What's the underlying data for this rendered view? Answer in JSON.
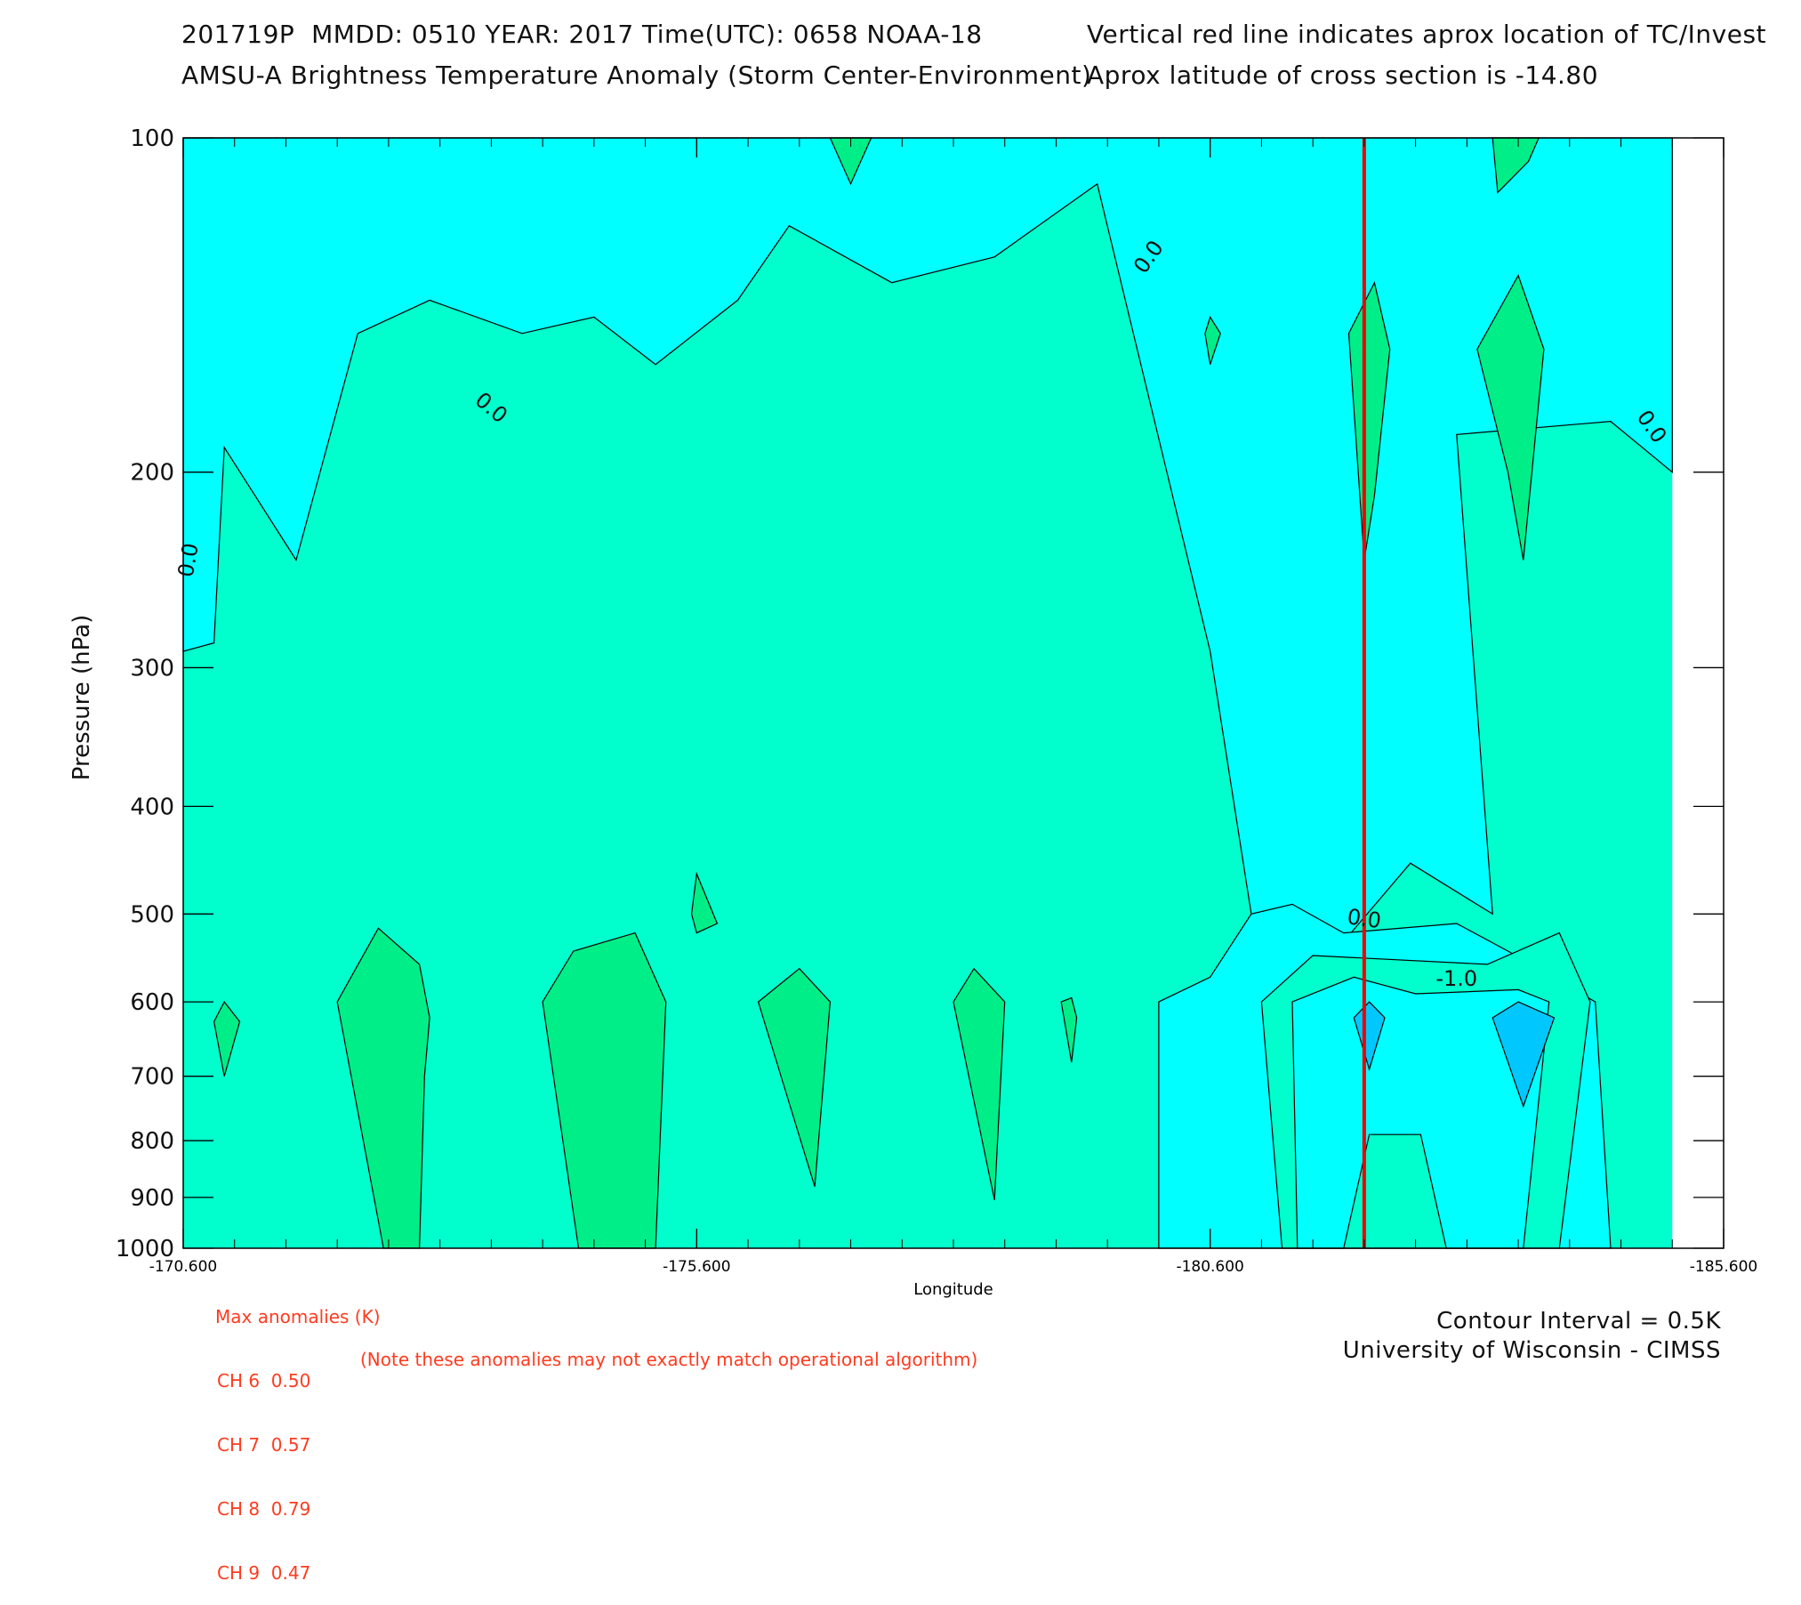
{
  "header": {
    "line1_left": "201719P  MMDD: 0510 YEAR: 2017 Time(UTC): 0658 NOAA-18",
    "line1_right": "Vertical red line indicates aprox location of TC/Invest",
    "line2_left": "AMSU-A Brightness Temperature Anomaly (Storm Center-Environment)",
    "line2_right": "Aprox latitude of cross section is -14.80"
  },
  "chart_data": {
    "type": "contour",
    "xlabel": "Longitude",
    "ylabel": "Pressure (hPa)",
    "x_ticks": [
      -170.6,
      -175.6,
      -180.6,
      -185.6
    ],
    "x_tick_labels": [
      "-170.600",
      "-175.600",
      "-180.600",
      "-185.600"
    ],
    "xlim": [
      -170.6,
      -185.6
    ],
    "y_scale": "log",
    "ylim": [
      1000,
      100
    ],
    "y_ticks": [
      100,
      200,
      300,
      400,
      500,
      600,
      700,
      800,
      900,
      1000
    ],
    "y_tick_labels": [
      "100",
      "200",
      "300",
      "400",
      "500",
      "600",
      "700",
      "800",
      "900",
      "1000"
    ],
    "contour_interval_K": 0.5,
    "contour_labels": [
      "0.0",
      "0.0",
      "0.0",
      "0.0",
      "0.0",
      "-1.0"
    ],
    "storm_longitude": -182.1,
    "colors": {
      "anomaly_neg_1_0": "#00c8ff",
      "anomaly_neg_0_5": "#00ffff",
      "anomaly_0_0": "#00ffcc",
      "anomaly_pos_0_5": "#00ee88",
      "storm_line": "#ee0000"
    },
    "regions": {
      "upper_negative": {
        "level": -0.5,
        "points": [
          [
            -170.6,
            100
          ],
          [
            -185.1,
            100
          ],
          [
            -185.1,
            200
          ],
          [
            -184.5,
            180
          ],
          [
            -183.0,
            185
          ],
          [
            -183.35,
            500
          ],
          [
            -182.55,
            450
          ],
          [
            -181.4,
            600
          ],
          [
            -181.0,
            500
          ],
          [
            -180.6,
            290
          ],
          [
            -179.5,
            110
          ],
          [
            -178.5,
            128
          ],
          [
            -177.5,
            135
          ],
          [
            -176.5,
            120
          ],
          [
            -176.0,
            140
          ],
          [
            -175.2,
            160
          ],
          [
            -174.6,
            145
          ],
          [
            -173.9,
            150
          ],
          [
            -173.0,
            140
          ],
          [
            -172.3,
            150
          ],
          [
            -171.7,
            240
          ],
          [
            -171.0,
            190
          ],
          [
            -170.9,
            285
          ],
          [
            -170.6,
            290
          ]
        ]
      },
      "lower_negative": {
        "level": -0.5,
        "points": [
          [
            -180.1,
            600
          ],
          [
            -180.6,
            570
          ],
          [
            -181.0,
            500
          ],
          [
            -181.4,
            490
          ],
          [
            -181.9,
            520
          ],
          [
            -183.0,
            510
          ],
          [
            -183.5,
            540
          ],
          [
            -184.35,
            600
          ],
          [
            -184.5,
            1000
          ],
          [
            -180.1,
            1000
          ]
        ]
      },
      "inner_ring_zero": {
        "level": 0.0,
        "points": [
          [
            -181.1,
            600
          ],
          [
            -181.6,
            545
          ],
          [
            -183.3,
            555
          ],
          [
            -184.0,
            520
          ],
          [
            -184.3,
            600
          ],
          [
            -184.0,
            1000
          ],
          [
            -181.3,
            1000
          ]
        ]
      },
      "inner_ring_neg": {
        "level": -0.5,
        "points": [
          [
            -181.4,
            600
          ],
          [
            -182.0,
            570
          ],
          [
            -182.6,
            590
          ],
          [
            -183.6,
            585
          ],
          [
            -183.9,
            600
          ],
          [
            -183.65,
            1000
          ],
          [
            -182.9,
            1000
          ],
          [
            -182.65,
            790
          ],
          [
            -182.15,
            790
          ],
          [
            -181.9,
            1000
          ],
          [
            -181.45,
            1000
          ]
        ]
      },
      "blue_cell_1": {
        "level": -1.0,
        "points": [
          [
            -182.15,
            600
          ],
          [
            -182.0,
            620
          ],
          [
            -182.15,
            690
          ],
          [
            -182.3,
            620
          ]
        ]
      },
      "blue_cell_2": {
        "level": -1.0,
        "points": [
          [
            -183.6,
            600
          ],
          [
            -183.35,
            620
          ],
          [
            -183.65,
            745
          ],
          [
            -183.95,
            620
          ]
        ]
      },
      "warm_cells": [
        [
          [
            -171.0,
            600
          ],
          [
            -170.9,
            625
          ],
          [
            -171.0,
            700
          ],
          [
            -171.15,
            625
          ]
        ],
        [
          [
            -172.1,
            600
          ],
          [
            -172.5,
            515
          ],
          [
            -172.9,
            555
          ],
          [
            -173.0,
            620
          ],
          [
            -172.95,
            700
          ],
          [
            -172.9,
            1000
          ],
          [
            -172.55,
            1000
          ]
        ],
        [
          [
            -174.1,
            600
          ],
          [
            -174.4,
            540
          ],
          [
            -175.0,
            520
          ],
          [
            -175.3,
            600
          ],
          [
            -175.2,
            1000
          ],
          [
            -174.45,
            1000
          ]
        ],
        [
          [
            -175.55,
            500
          ],
          [
            -175.6,
            460
          ],
          [
            -175.8,
            510
          ],
          [
            -175.6,
            520
          ]
        ],
        [
          [
            -176.2,
            600
          ],
          [
            -176.6,
            560
          ],
          [
            -176.9,
            600
          ],
          [
            -176.75,
            880
          ]
        ],
        [
          [
            -178.1,
            600
          ],
          [
            -178.3,
            560
          ],
          [
            -178.6,
            600
          ],
          [
            -178.5,
            905
          ]
        ],
        [
          [
            -179.15,
            600
          ],
          [
            -179.25,
            595
          ],
          [
            -179.3,
            620
          ],
          [
            -179.25,
            680
          ]
        ],
        [
          [
            -180.55,
            150
          ],
          [
            -180.6,
            145
          ],
          [
            -180.7,
            150
          ],
          [
            -180.6,
            160
          ]
        ],
        [
          [
            -181.95,
            150
          ],
          [
            -182.2,
            135
          ],
          [
            -182.35,
            155
          ],
          [
            -182.2,
            210
          ],
          [
            -182.1,
            240
          ]
        ],
        [
          [
            -183.2,
            155
          ],
          [
            -183.6,
            133
          ],
          [
            -183.85,
            155
          ],
          [
            -183.65,
            240
          ],
          [
            -183.5,
            200
          ]
        ],
        [
          [
            -176.9,
            100
          ],
          [
            -177.3,
            100
          ],
          [
            -177.1,
            110
          ]
        ],
        [
          [
            -183.35,
            100
          ],
          [
            -183.8,
            100
          ],
          [
            -183.7,
            105
          ],
          [
            -183.4,
            112
          ]
        ]
      ]
    }
  },
  "max_anomalies": {
    "title": "Max anomalies (K)",
    "rows": [
      "CH 6  0.50",
      "CH 7  0.57",
      "CH 8  0.79",
      "CH 9  0.47"
    ],
    "note": "(Note these anomalies may not exactly match operational algorithm)"
  },
  "footer": {
    "contour_interval": "Contour Interval = 0.5K",
    "credit": "University of Wisconsin - CIMSS"
  }
}
